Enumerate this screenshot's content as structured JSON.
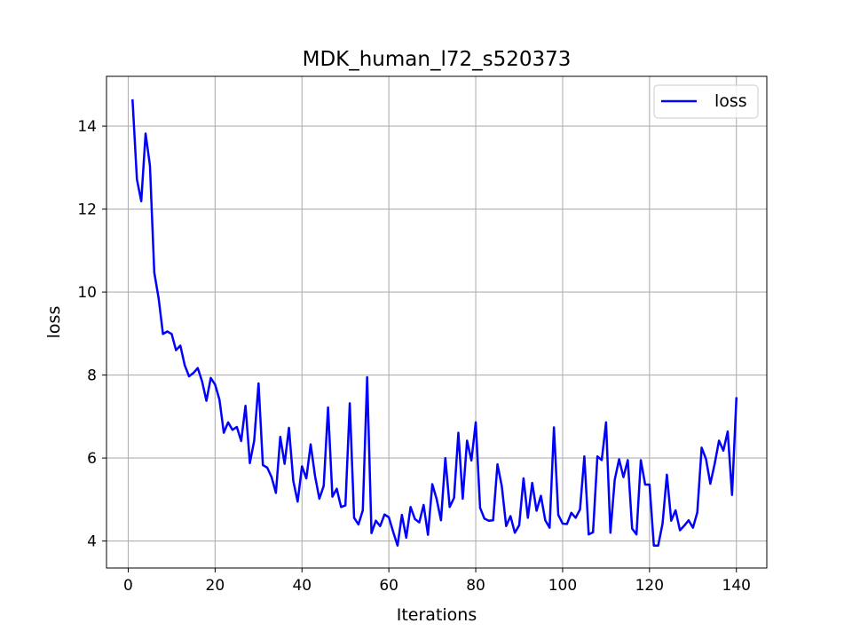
{
  "chart_data": {
    "type": "line",
    "title": "MDK_human_l72_s520373",
    "xlabel": "Iterations",
    "ylabel": "loss",
    "xlim": [
      -5,
      147
    ],
    "ylim": [
      3.35,
      15.2
    ],
    "xticks": [
      0,
      20,
      40,
      60,
      80,
      100,
      120,
      140
    ],
    "yticks": [
      4,
      6,
      8,
      10,
      12,
      14
    ],
    "grid": true,
    "legend": "top-right",
    "series": [
      {
        "name": "loss",
        "color": "#0000ff",
        "x": [
          1,
          2,
          3,
          4,
          5,
          6,
          7,
          8,
          9,
          10,
          11,
          12,
          13,
          14,
          15,
          16,
          17,
          18,
          19,
          20,
          21,
          22,
          23,
          24,
          25,
          26,
          27,
          28,
          29,
          30,
          31,
          32,
          33,
          34,
          35,
          36,
          37,
          38,
          39,
          40,
          41,
          42,
          43,
          44,
          45,
          46,
          47,
          48,
          49,
          50,
          51,
          52,
          53,
          54,
          55,
          56,
          57,
          58,
          59,
          60,
          61,
          62,
          63,
          64,
          65,
          66,
          67,
          68,
          69,
          70,
          71,
          72,
          73,
          74,
          75,
          76,
          77,
          78,
          79,
          80,
          81,
          82,
          83,
          84,
          85,
          86,
          87,
          88,
          89,
          90,
          91,
          92,
          93,
          94,
          95,
          96,
          97,
          98,
          99,
          100,
          101,
          102,
          103,
          104,
          105,
          106,
          107,
          108,
          109,
          110,
          111,
          112,
          113,
          114,
          115,
          116,
          117,
          118,
          119,
          120,
          121,
          122,
          123,
          124,
          125,
          126,
          127,
          128,
          129,
          130,
          131,
          132,
          133,
          134,
          135,
          136,
          137,
          138,
          139,
          140
        ],
        "values": [
          14.62,
          12.72,
          12.19,
          13.82,
          13.05,
          10.47,
          9.85,
          8.99,
          9.05,
          8.99,
          8.6,
          8.71,
          8.24,
          7.97,
          8.05,
          8.17,
          7.85,
          7.38,
          7.93,
          7.77,
          7.41,
          6.61,
          6.86,
          6.68,
          6.75,
          6.41,
          7.26,
          5.88,
          6.42,
          7.8,
          5.83,
          5.77,
          5.54,
          5.16,
          6.51,
          5.86,
          6.73,
          5.45,
          4.95,
          5.8,
          5.51,
          6.33,
          5.57,
          5.02,
          5.33,
          7.22,
          5.07,
          5.26,
          4.82,
          4.86,
          7.32,
          4.56,
          4.4,
          4.74,
          7.95,
          4.19,
          4.49,
          4.36,
          4.64,
          4.57,
          4.22,
          3.89,
          4.63,
          4.08,
          4.82,
          4.53,
          4.45,
          4.87,
          4.15,
          5.37,
          5.01,
          4.5,
          6.0,
          4.82,
          5.04,
          6.61,
          5.02,
          6.42,
          5.94,
          6.86,
          4.8,
          4.54,
          4.49,
          4.5,
          5.85,
          5.32,
          4.36,
          4.6,
          4.2,
          4.38,
          5.51,
          4.56,
          5.4,
          4.73,
          5.09,
          4.5,
          4.32,
          6.74,
          4.63,
          4.42,
          4.41,
          4.68,
          4.56,
          4.76,
          6.04,
          4.16,
          4.21,
          6.04,
          5.95,
          6.86,
          4.2,
          5.48,
          5.97,
          5.54,
          5.95,
          4.3,
          4.16,
          5.95,
          5.36,
          5.36,
          3.89,
          3.89,
          4.42,
          5.6,
          4.49,
          4.74,
          4.26,
          4.37,
          4.5,
          4.32,
          4.69,
          6.25,
          5.98,
          5.38,
          5.86,
          6.42,
          6.18,
          6.64,
          5.11,
          7.44
        ]
      }
    ]
  }
}
